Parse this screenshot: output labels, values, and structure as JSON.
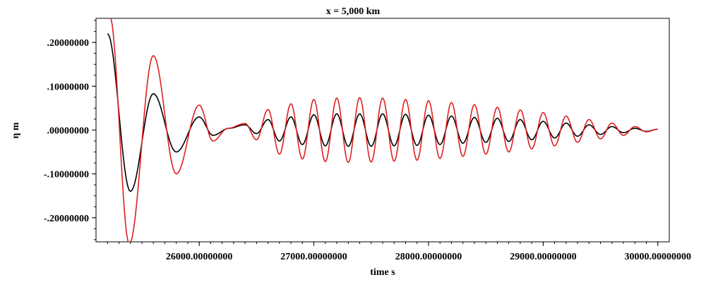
{
  "chart_data": {
    "type": "line",
    "title": "x = 5,000 km",
    "xlabel": "time s",
    "ylabel": "η m",
    "xlim": [
      25100,
      30100
    ],
    "ylim": [
      -0.255,
      0.255
    ],
    "grid": false,
    "legend": "none",
    "x_ticks": [
      {
        "value": 26000,
        "label": "26000.00000000"
      },
      {
        "value": 27000,
        "label": "27000.00000000"
      },
      {
        "value": 28000,
        "label": "28000.00000000"
      },
      {
        "value": 29000,
        "label": "29000.00000000"
      },
      {
        "value": 30000,
        "label": "30000.00000000"
      }
    ],
    "y_ticks": [
      {
        "value": 0.2,
        "label": ".20000000"
      },
      {
        "value": 0.1,
        "label": ".10000000"
      },
      {
        "value": 0.0,
        "label": ".00000000"
      },
      {
        "value": -0.1,
        "label": "-.10000000"
      },
      {
        "value": -0.2,
        "label": "-.20000000"
      }
    ],
    "x_range": [
      25200,
      30000
    ],
    "series": [
      {
        "color": "#000000",
        "extrema": [
          [
            25200,
            0.22
          ],
          [
            25400,
            -0.14
          ],
          [
            25600,
            0.083
          ],
          [
            25800,
            -0.05
          ],
          [
            26000,
            0.03
          ],
          [
            26120,
            -0.012
          ],
          [
            26260,
            0.004
          ],
          [
            26400,
            0.012
          ],
          [
            26500,
            -0.008
          ],
          [
            26600,
            0.024
          ],
          [
            26700,
            -0.025
          ],
          [
            26800,
            0.03
          ],
          [
            26900,
            -0.033
          ],
          [
            27000,
            0.035
          ],
          [
            27100,
            -0.036
          ],
          [
            27200,
            0.037
          ],
          [
            27300,
            -0.037
          ],
          [
            27400,
            0.037
          ],
          [
            27500,
            -0.037
          ],
          [
            27600,
            0.037
          ],
          [
            27700,
            -0.036
          ],
          [
            27800,
            0.036
          ],
          [
            27900,
            -0.035
          ],
          [
            28000,
            0.034
          ],
          [
            28100,
            -0.033
          ],
          [
            28200,
            0.032
          ],
          [
            28300,
            -0.03
          ],
          [
            28400,
            0.029
          ],
          [
            28500,
            -0.028
          ],
          [
            28600,
            0.027
          ],
          [
            28700,
            -0.026
          ],
          [
            28800,
            0.024
          ],
          [
            28900,
            -0.022
          ],
          [
            29000,
            0.02
          ],
          [
            29100,
            -0.018
          ],
          [
            29200,
            0.016
          ],
          [
            29300,
            -0.014
          ],
          [
            29400,
            0.012
          ],
          [
            29500,
            -0.01
          ],
          [
            29600,
            0.008
          ],
          [
            29700,
            -0.006
          ],
          [
            29800,
            0.004
          ],
          [
            29900,
            -0.003
          ],
          [
            30000,
            0.002
          ]
        ]
      },
      {
        "color": "#e02020",
        "extrema": [
          [
            25220,
            0.26
          ],
          [
            25390,
            -0.26
          ],
          [
            25600,
            0.17
          ],
          [
            25800,
            -0.1
          ],
          [
            26000,
            0.057
          ],
          [
            26120,
            -0.025
          ],
          [
            26250,
            0.004
          ],
          [
            26400,
            0.015
          ],
          [
            26500,
            -0.022
          ],
          [
            26600,
            0.047
          ],
          [
            26700,
            -0.055
          ],
          [
            26800,
            0.06
          ],
          [
            26900,
            -0.066
          ],
          [
            27000,
            0.07
          ],
          [
            27100,
            -0.072
          ],
          [
            27200,
            0.073
          ],
          [
            27300,
            -0.074
          ],
          [
            27400,
            0.074
          ],
          [
            27500,
            -0.073
          ],
          [
            27600,
            0.073
          ],
          [
            27700,
            -0.071
          ],
          [
            27800,
            0.07
          ],
          [
            27900,
            -0.069
          ],
          [
            28000,
            0.067
          ],
          [
            28100,
            -0.065
          ],
          [
            28200,
            0.063
          ],
          [
            28300,
            -0.06
          ],
          [
            28400,
            0.058
          ],
          [
            28500,
            -0.055
          ],
          [
            28600,
            0.052
          ],
          [
            28700,
            -0.05
          ],
          [
            28800,
            0.046
          ],
          [
            28900,
            -0.043
          ],
          [
            29000,
            0.04
          ],
          [
            29100,
            -0.036
          ],
          [
            29200,
            0.032
          ],
          [
            29300,
            -0.028
          ],
          [
            29400,
            0.024
          ],
          [
            29500,
            -0.02
          ],
          [
            29600,
            0.016
          ],
          [
            29700,
            -0.012
          ],
          [
            29800,
            0.008
          ],
          [
            29900,
            -0.004
          ],
          [
            30000,
            0.002
          ]
        ]
      }
    ]
  }
}
